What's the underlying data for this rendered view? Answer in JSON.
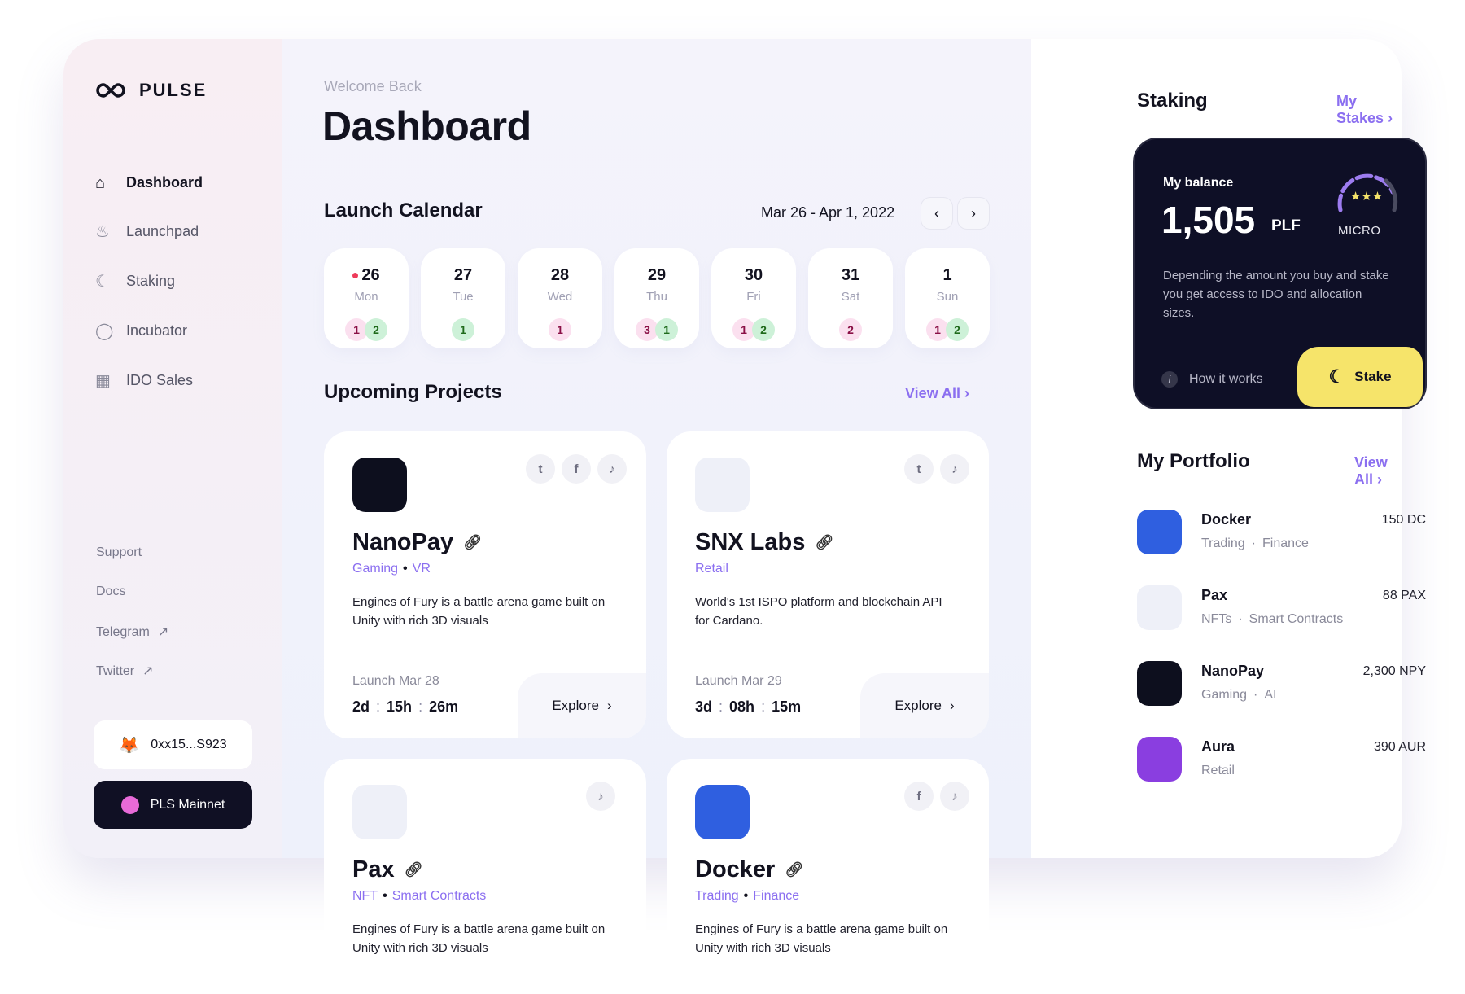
{
  "brand": {
    "name": "PULSE"
  },
  "sidebar": {
    "items": [
      {
        "label": "Dashboard",
        "icon": "home-icon",
        "active": true
      },
      {
        "label": "Launchpad",
        "icon": "flame-icon"
      },
      {
        "label": "Staking",
        "icon": "moon-icon"
      },
      {
        "label": "Incubator",
        "icon": "egg-icon"
      },
      {
        "label": "IDO Sales",
        "icon": "grid-icon"
      }
    ],
    "links": [
      {
        "label": "Support"
      },
      {
        "label": "Docs"
      },
      {
        "label": "Telegram",
        "external": true
      },
      {
        "label": "Twitter",
        "external": true
      }
    ],
    "wallet": "0xx15...S923",
    "network": "PLS Mainnet"
  },
  "header": {
    "welcome": "Welcome Back",
    "title": "Dashboard"
  },
  "calendar": {
    "title": "Launch Calendar",
    "range": "Mar 26 - Apr 1, 2022",
    "days": [
      {
        "n": "26",
        "w": "Mon",
        "p": "1",
        "g": "2",
        "today": true
      },
      {
        "n": "27",
        "w": "Tue",
        "g": "1"
      },
      {
        "n": "28",
        "w": "Wed",
        "p": "1"
      },
      {
        "n": "29",
        "w": "Thu",
        "p": "3",
        "g": "1"
      },
      {
        "n": "30",
        "w": "Fri",
        "p": "1",
        "g": "2"
      },
      {
        "n": "31",
        "w": "Sat",
        "p": "2"
      },
      {
        "n": "1",
        "w": "Sun",
        "p": "1",
        "g": "2"
      }
    ]
  },
  "projects": {
    "title": "Upcoming Projects",
    "view_all": "View All",
    "items": [
      {
        "name": "NanoPay",
        "tags": [
          "Gaming",
          "VR"
        ],
        "desc": "Engines of Fury is a battle arena game built on Unity with rich 3D visuals",
        "launch": "Launch Mar 28",
        "cd": [
          "2d",
          "15h",
          "26m"
        ],
        "explore": "Explore",
        "social": [
          "twitter",
          "facebook",
          "tiktok"
        ],
        "color": "#0d0f1e"
      },
      {
        "name": "SNX Labs",
        "tags": [
          "Retail"
        ],
        "desc": "World's 1st ISPO platform and blockchain API for Cardano.",
        "launch": "Launch Mar 29",
        "cd": [
          "3d",
          "08h",
          "15m"
        ],
        "explore": "Explore",
        "social": [
          "twitter",
          "tiktok"
        ],
        "color": "#eef0f8"
      },
      {
        "name": "Pax",
        "tags": [
          "NFT",
          "Smart Contracts"
        ],
        "desc": "Engines of Fury is a battle arena game built on Unity with rich 3D visuals",
        "social": [
          "tiktok"
        ],
        "color": "#eef0f8"
      },
      {
        "name": "Docker",
        "tags": [
          "Trading",
          "Finance"
        ],
        "desc": "Engines of Fury is a battle arena game built on Unity with rich 3D visuals",
        "social": [
          "facebook",
          "tiktok"
        ],
        "color": "#2f5fe0"
      }
    ]
  },
  "staking": {
    "title": "Staking",
    "my_stakes": "My Stakes",
    "balance_label": "My balance",
    "balance": "1,505",
    "unit": "PLF",
    "tier": "MICRO",
    "desc": "Depending the amount you buy and stake you get access to IDO and allocation sizes.",
    "how": "How it works",
    "stake_btn": "Stake",
    "accent": "#f6e46a"
  },
  "portfolio": {
    "title": "My Portfolio",
    "view_all": "View All",
    "items": [
      {
        "name": "Docker",
        "tags": [
          "Trading",
          "Finance"
        ],
        "amount": "150 DC",
        "color": "#2f5fe0"
      },
      {
        "name": "Pax",
        "tags": [
          "NFTs",
          "Smart Contracts"
        ],
        "amount": "88 PAX",
        "color": "#eef0f8"
      },
      {
        "name": "NanoPay",
        "tags": [
          "Gaming",
          "AI"
        ],
        "amount": "2,300 NPY",
        "color": "#0d0f1e"
      },
      {
        "name": "Aura",
        "tags": [
          "Retail"
        ],
        "amount": "390 AUR",
        "color": "#8a3ee0"
      }
    ]
  }
}
